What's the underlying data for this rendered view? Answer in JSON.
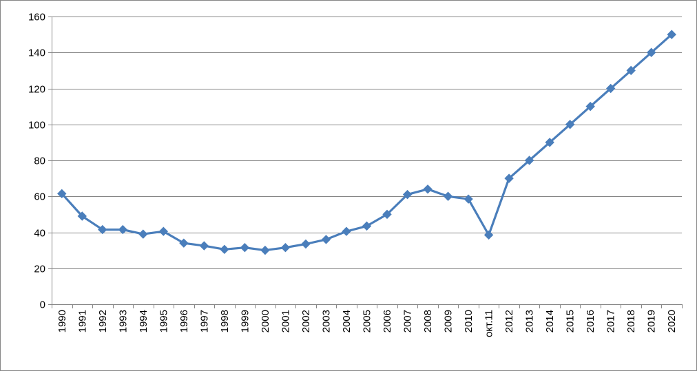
{
  "chart_data": {
    "type": "line",
    "title": "",
    "xlabel": "",
    "ylabel": "",
    "ylim": [
      0,
      160
    ],
    "y_ticks": [
      0,
      20,
      40,
      60,
      80,
      100,
      120,
      140,
      160
    ],
    "grid": "horizontal",
    "legend": "none",
    "categories": [
      "1990",
      "1991",
      "1992",
      "1993",
      "1994",
      "1995",
      "1996",
      "1997",
      "1998",
      "1999",
      "2000",
      "2001",
      "2002",
      "2003",
      "2004",
      "2005",
      "2006",
      "2007",
      "2008",
      "2009",
      "2010",
      "окт.11",
      "2012",
      "2013",
      "2014",
      "2015",
      "2016",
      "2017",
      "2018",
      "2019",
      "2020"
    ],
    "series": [
      {
        "color": "#4A7EBB",
        "marker": "diamond",
        "values": [
          61.5,
          49,
          41.5,
          41.5,
          39,
          40.5,
          34,
          32.5,
          30.5,
          31.5,
          30,
          31.5,
          33.5,
          36,
          40.5,
          43.5,
          50,
          61,
          64,
          60,
          58.5,
          38.5,
          70,
          80,
          90,
          100,
          110,
          120,
          130,
          140,
          150
        ]
      }
    ]
  }
}
